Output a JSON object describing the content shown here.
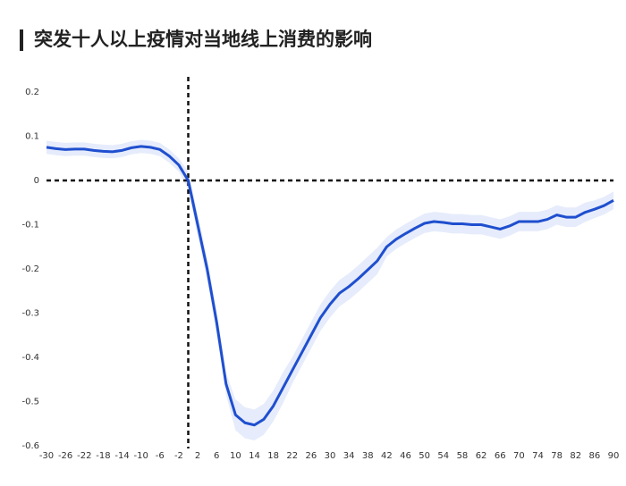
{
  "chart_data": {
    "type": "line",
    "title": "突发十人以上疫情对当地线上消费的影响",
    "color": "#1f4fcf",
    "band_color": "#e6ecfb",
    "x": [
      -30,
      -28,
      -26,
      -24,
      -22,
      -20,
      -18,
      -16,
      -14,
      -12,
      -10,
      -8,
      -6,
      -4,
      -2,
      0,
      2,
      4,
      6,
      8,
      10,
      12,
      14,
      16,
      18,
      20,
      22,
      24,
      26,
      28,
      30,
      32,
      34,
      36,
      38,
      40,
      42,
      44,
      46,
      48,
      50,
      52,
      54,
      56,
      58,
      60,
      62,
      64,
      66,
      68,
      70,
      72,
      74,
      76,
      78,
      80,
      82,
      84,
      86,
      88,
      90
    ],
    "values": [
      0.075,
      0.072,
      0.07,
      0.071,
      0.071,
      0.068,
      0.066,
      0.065,
      0.068,
      0.074,
      0.077,
      0.075,
      0.07,
      0.055,
      0.035,
      0,
      -0.1,
      -0.2,
      -0.32,
      -0.46,
      -0.53,
      -0.548,
      -0.553,
      -0.54,
      -0.51,
      -0.47,
      -0.43,
      -0.39,
      -0.35,
      -0.31,
      -0.28,
      -0.255,
      -0.24,
      -0.222,
      -0.202,
      -0.182,
      -0.15,
      -0.133,
      -0.12,
      -0.108,
      -0.097,
      -0.093,
      -0.095,
      -0.098,
      -0.098,
      -0.1,
      -0.1,
      -0.105,
      -0.11,
      -0.103,
      -0.093,
      -0.093,
      -0.093,
      -0.088,
      -0.078,
      -0.083,
      -0.083,
      -0.072,
      -0.065,
      -0.057,
      -0.045
    ],
    "errors": [
      0.015,
      0.015,
      0.015,
      0.015,
      0.015,
      0.015,
      0.015,
      0.015,
      0.015,
      0.015,
      0.015,
      0.015,
      0.015,
      0.015,
      0.015,
      0.02,
      0.025,
      0.025,
      0.025,
      0.025,
      0.035,
      0.035,
      0.035,
      0.035,
      0.035,
      0.035,
      0.03,
      0.03,
      0.03,
      0.03,
      0.03,
      0.03,
      0.03,
      0.03,
      0.03,
      0.03,
      0.022,
      0.022,
      0.022,
      0.022,
      0.022,
      0.022,
      0.022,
      0.022,
      0.022,
      0.022,
      0.022,
      0.022,
      0.022,
      0.022,
      0.022,
      0.022,
      0.022,
      0.022,
      0.022,
      0.022,
      0.022,
      0.022,
      0.02,
      0.02,
      0.02
    ],
    "xlim": [
      -30,
      90
    ],
    "xticks": [
      -30,
      -26,
      -22,
      -18,
      -14,
      -10,
      -6,
      -2,
      2,
      6,
      10,
      14,
      18,
      22,
      26,
      30,
      34,
      38,
      42,
      46,
      50,
      54,
      58,
      62,
      66,
      70,
      74,
      78,
      82,
      86,
      90
    ],
    "ylim": [
      -0.6,
      0.2
    ],
    "yticks": [
      0.2,
      0.1,
      0,
      -0.1,
      -0.2,
      -0.3,
      -0.4,
      -0.5,
      -0.6
    ],
    "reference_lines": {
      "x": 0,
      "y": 0
    }
  }
}
